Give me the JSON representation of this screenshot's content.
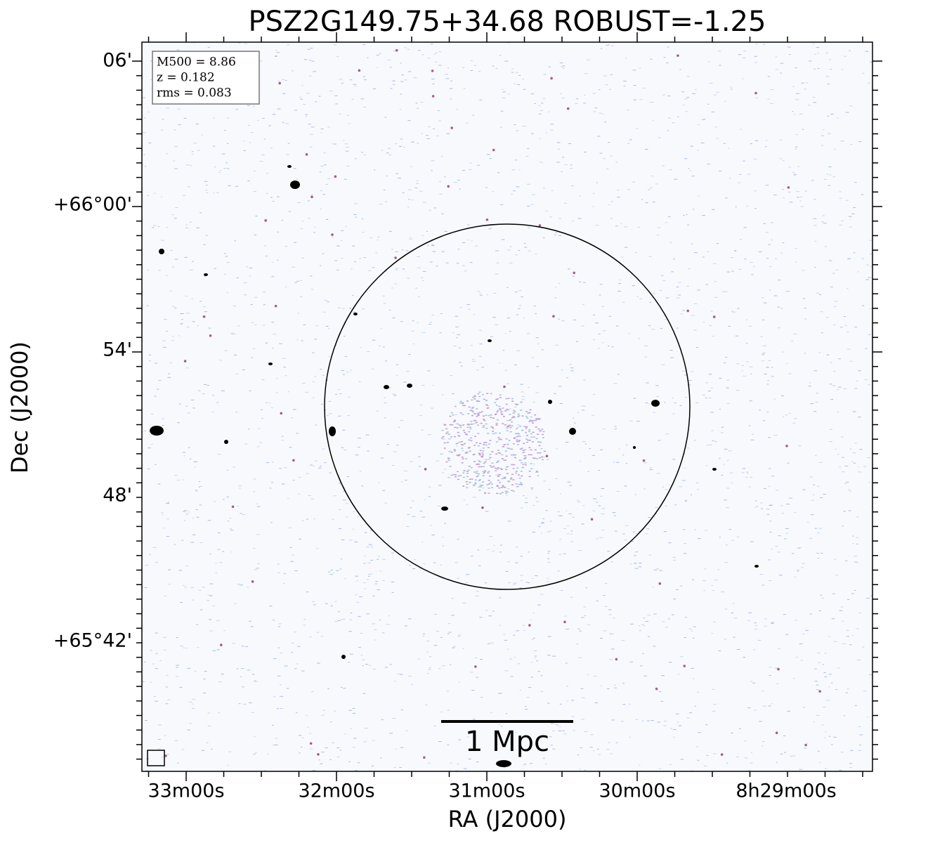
{
  "figure": {
    "title": "PSZ2G149.75+34.68 ROBUST=-1.25",
    "x_axis_label": "RA (J2000)",
    "y_axis_label": "Dec (J2000)",
    "x_tick_labels": [
      "33m00s",
      "32m00s",
      "31m00s",
      "30m00s",
      "8h29m00s"
    ],
    "y_tick_labels": [
      "06'",
      "+66°00'",
      "54'",
      "48'",
      "+65°42'"
    ],
    "info_box": [
      "M500 = 8.86",
      "z = 0.182",
      "rms = 0.083"
    ],
    "scale_bar_label": "1 Mpc"
  }
}
